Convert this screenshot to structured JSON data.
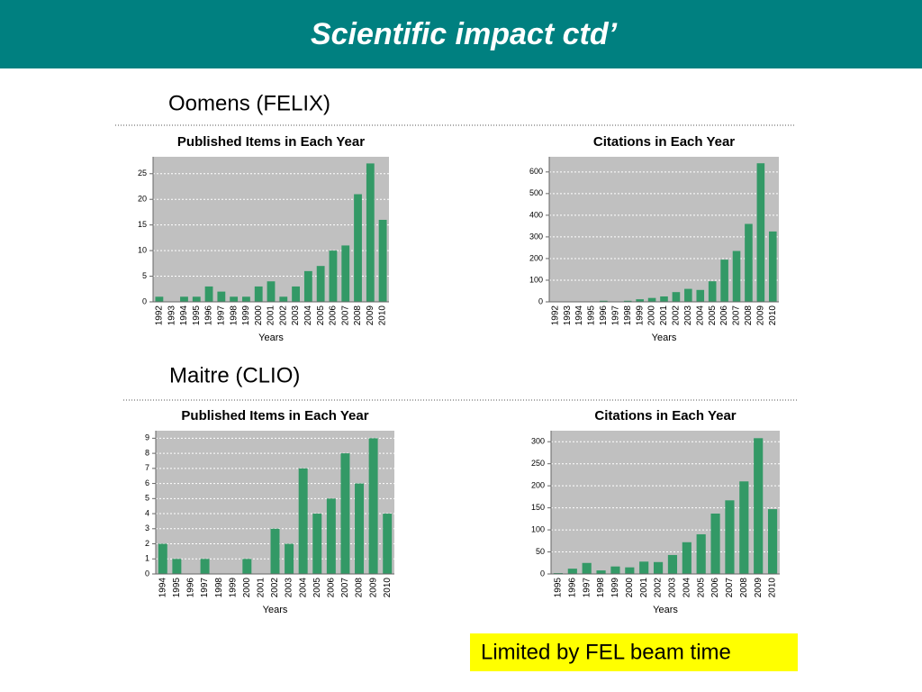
{
  "header": {
    "title": "Scientific impact ctd’"
  },
  "sections": [
    "Oomens (FELIX)",
    "Maitre (CLIO)"
  ],
  "note": "Limited by FEL beam time",
  "chart_data": [
    {
      "type": "bar",
      "title": "Published Items in Each Year",
      "x_label": "Years",
      "color": "#339966",
      "grid": true,
      "categories": [
        "1992",
        "1993",
        "1994",
        "1995",
        "1996",
        "1997",
        "1998",
        "1999",
        "2000",
        "2001",
        "2002",
        "2003",
        "2004",
        "2005",
        "2006",
        "2007",
        "2008",
        "2009",
        "2010"
      ],
      "values": [
        1,
        0,
        1,
        1,
        3,
        2,
        1,
        1,
        3,
        4,
        1,
        3,
        6,
        7,
        10,
        11,
        21,
        27,
        16
      ],
      "ylim": [
        0,
        28.3
      ],
      "yticks": [
        0,
        5,
        10,
        15,
        20,
        25
      ]
    },
    {
      "type": "bar",
      "title": "Citations in Each Year",
      "x_label": "Years",
      "color": "#339966",
      "grid": true,
      "categories": [
        "1992",
        "1993",
        "1994",
        "1995",
        "1996",
        "1997",
        "1998",
        "1999",
        "2000",
        "2001",
        "2002",
        "2003",
        "2004",
        "2005",
        "2006",
        "2007",
        "2008",
        "2009",
        "2010"
      ],
      "values": [
        0,
        0,
        1,
        0,
        5,
        0,
        5,
        12,
        18,
        25,
        45,
        60,
        55,
        95,
        195,
        235,
        360,
        640,
        325
      ],
      "ylim": [
        0,
        670
      ],
      "yticks": [
        0,
        100,
        200,
        300,
        400,
        500,
        600
      ]
    },
    {
      "type": "bar",
      "title": "Published Items in Each Year",
      "x_label": "Years",
      "color": "#339966",
      "grid": true,
      "categories": [
        "1994",
        "1995",
        "1996",
        "1997",
        "1998",
        "1999",
        "2000",
        "2001",
        "2002",
        "2003",
        "2004",
        "2005",
        "2006",
        "2007",
        "2008",
        "2009",
        "2010"
      ],
      "values": [
        2,
        1,
        0,
        1,
        0,
        0,
        1,
        0,
        3,
        2,
        7,
        4,
        5,
        8,
        6,
        9,
        4
      ],
      "ylim": [
        0,
        9.5
      ],
      "yticks": [
        0,
        1,
        2,
        3,
        4,
        5,
        6,
        7,
        8,
        9
      ]
    },
    {
      "type": "bar",
      "title": "Citations in Each Year",
      "x_label": "Years",
      "color": "#339966",
      "grid": true,
      "categories": [
        "1995",
        "1996",
        "1997",
        "1998",
        "1999",
        "2000",
        "2001",
        "2002",
        "2003",
        "2004",
        "2005",
        "2006",
        "2007",
        "2008",
        "2009",
        "2010"
      ],
      "values": [
        2,
        12,
        25,
        8,
        17,
        15,
        28,
        27,
        43,
        72,
        90,
        137,
        167,
        210,
        308,
        147
      ],
      "ylim": [
        0,
        325
      ],
      "yticks": [
        0,
        50,
        100,
        150,
        200,
        250,
        300
      ]
    }
  ]
}
